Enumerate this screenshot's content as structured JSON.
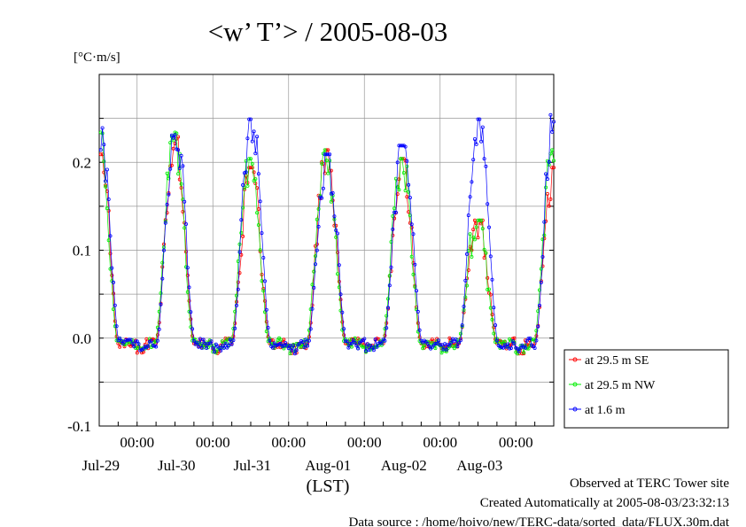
{
  "chart_data": {
    "type": "line",
    "title": "<w’ T’> / 2005-08-03",
    "ylabel": "[°C·m/s]",
    "xlabel": "(LST)",
    "ylim": [
      -0.1,
      0.3
    ],
    "yticks": [
      -0.1,
      0.0,
      0.1,
      0.2
    ],
    "ytick_labels": [
      "-0.1",
      "0.0",
      "0.1",
      "0.2"
    ],
    "x_unit": "hours since 2005-07-28 00:00 LST",
    "xlim": [
      12.0,
      156.0
    ],
    "time_ticks": [
      24,
      48,
      72,
      96,
      120,
      144
    ],
    "time_tick_labels": [
      "00:00",
      "00:00",
      "00:00",
      "00:00",
      "00:00",
      "00:00"
    ],
    "date_labels": [
      "Jul-29",
      "Jul-30",
      "Jul-31",
      "Aug-01",
      "Aug-02",
      "Aug-03"
    ],
    "grid": true,
    "legend_position": "right",
    "series": [
      {
        "name": "at 29.5 m SE",
        "color": "#ff0000",
        "offset": 0.0,
        "peaks": [
          0.235,
          0.2,
          0.22,
          0.21,
          0.14,
          0.2
        ]
      },
      {
        "name": "at 29.5 m NW",
        "color": "#00ee00",
        "offset": 0.25,
        "peaks": [
          0.24,
          0.21,
          0.22,
          0.21,
          0.14,
          0.22
        ]
      },
      {
        "name": "at 1.6 m",
        "color": "#0000ff",
        "offset": -0.25,
        "peaks": [
          0.245,
          0.255,
          0.215,
          0.225,
          0.255,
          0.275
        ]
      }
    ]
  },
  "footer": {
    "line1": "Observed at TERC Tower site",
    "line2": "Created Automatically at 2005-08-03/23:32:13",
    "line3": "Data source : /home/hoivo/new/TERC-data/sorted_data/FLUX.30m.dat"
  }
}
